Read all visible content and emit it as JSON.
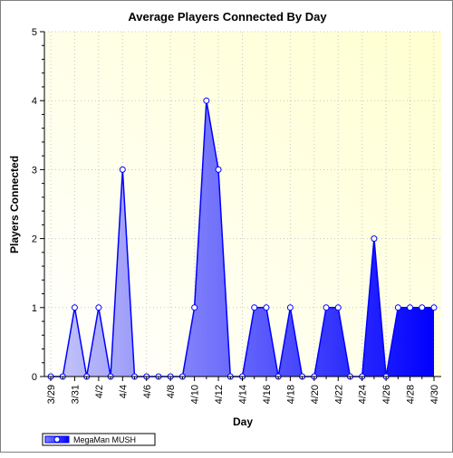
{
  "chart_data": {
    "type": "area",
    "title": "Average Players Connected By Day",
    "xlabel": "Day",
    "ylabel": "Players Connected",
    "ylim": [
      0,
      5
    ],
    "yticks": [
      "0",
      "1",
      "2",
      "3",
      "4",
      "5"
    ],
    "xtick_labels": [
      "3/29",
      "3/31",
      "4/2",
      "4/4",
      "4/6",
      "4/8",
      "4/10",
      "4/12",
      "4/14",
      "4/16",
      "4/18",
      "4/20",
      "4/22",
      "4/24",
      "4/26",
      "4/28",
      "4/30"
    ],
    "grid": true,
    "legend_position": "bottom-left",
    "series": [
      {
        "name": "MegaMan MUSH",
        "color": "#0000ff",
        "x": [
          "3/29",
          "3/30",
          "3/31",
          "4/1",
          "4/2",
          "4/3",
          "4/4",
          "4/5",
          "4/6",
          "4/7",
          "4/8",
          "4/9",
          "4/10",
          "4/11",
          "4/12",
          "4/13",
          "4/14",
          "4/15",
          "4/16",
          "4/17",
          "4/18",
          "4/19",
          "4/20",
          "4/21",
          "4/22",
          "4/23",
          "4/24",
          "4/25",
          "4/26",
          "4/27",
          "4/28",
          "4/29",
          "4/30"
        ],
        "values": [
          0,
          0,
          1,
          0,
          1,
          0,
          3,
          0,
          0,
          0,
          0,
          0,
          1,
          4,
          3,
          0,
          0,
          1,
          1,
          0,
          1,
          0,
          0,
          1,
          1,
          0,
          0,
          2,
          0,
          1,
          1,
          1,
          1
        ]
      }
    ]
  }
}
